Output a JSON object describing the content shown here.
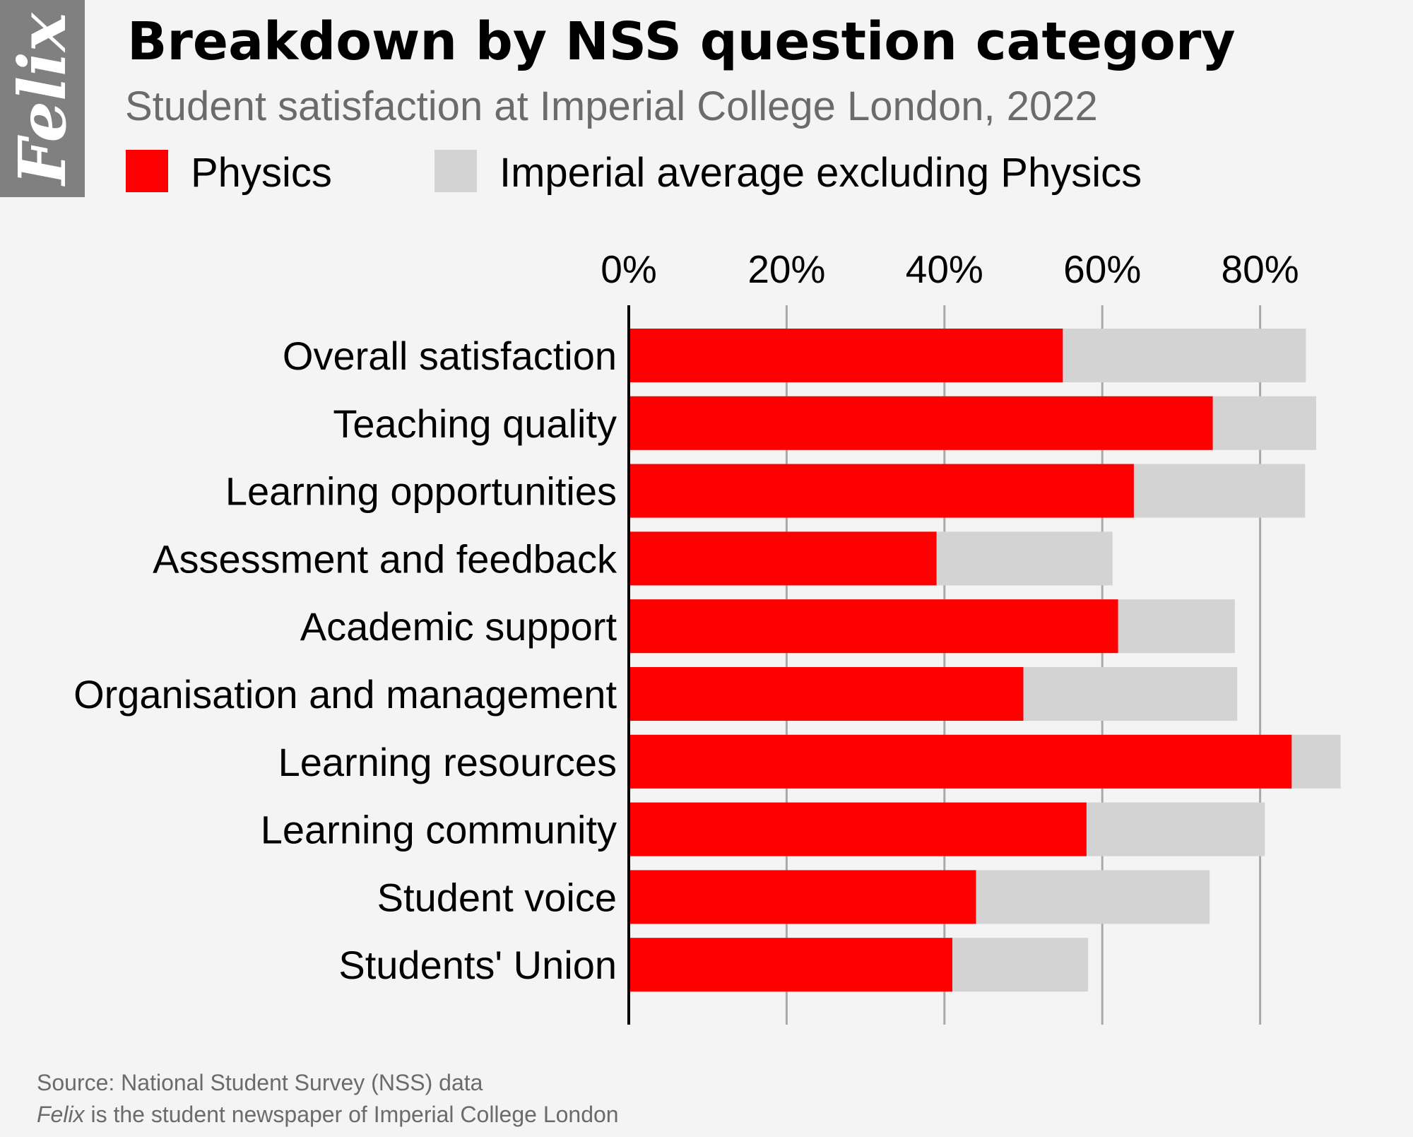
{
  "brand": {
    "logo": "Felix"
  },
  "header": {
    "title": "Breakdown by NSS question category",
    "subtitle": "Student satisfaction at Imperial College London, 2022"
  },
  "legend": [
    {
      "label": "Physics",
      "color": "#ff0000"
    },
    {
      "label": "Imperial average excluding Physics",
      "color": "#d3d3d3"
    }
  ],
  "footer": {
    "source": "Source: National Student Survey (NSS) data",
    "note_brand": "Felix",
    "note_rest": " is the student newspaper of Imperial College London"
  },
  "chart_data": {
    "type": "bar",
    "orientation": "horizontal",
    "categories": [
      "Overall satisfaction",
      "Teaching quality",
      "Learning opportunities",
      "Assessment and feedback",
      "Academic support",
      "Organisation and management",
      "Learning resources",
      "Learning community",
      "Student voice",
      "Students' Union"
    ],
    "series": [
      {
        "name": "Imperial average excluding Physics",
        "color": "#d3d3d3",
        "values": [
          85.8,
          87.1,
          85.7,
          61.3,
          76.8,
          77.1,
          90.2,
          80.6,
          73.6,
          58.2
        ]
      },
      {
        "name": "Physics",
        "color": "#ff0000",
        "values": [
          55.0,
          74.0,
          64.0,
          39.0,
          62.0,
          50.0,
          84.0,
          58.0,
          44.0,
          41.0
        ]
      }
    ],
    "xticks": [
      "0%",
      "20%",
      "40%",
      "60%",
      "80%"
    ],
    "xtick_values": [
      0,
      20,
      40,
      60,
      80
    ],
    "xlim": [
      0,
      90
    ],
    "grid": true,
    "xaxis_position": "top",
    "legend_position": "top-left"
  }
}
